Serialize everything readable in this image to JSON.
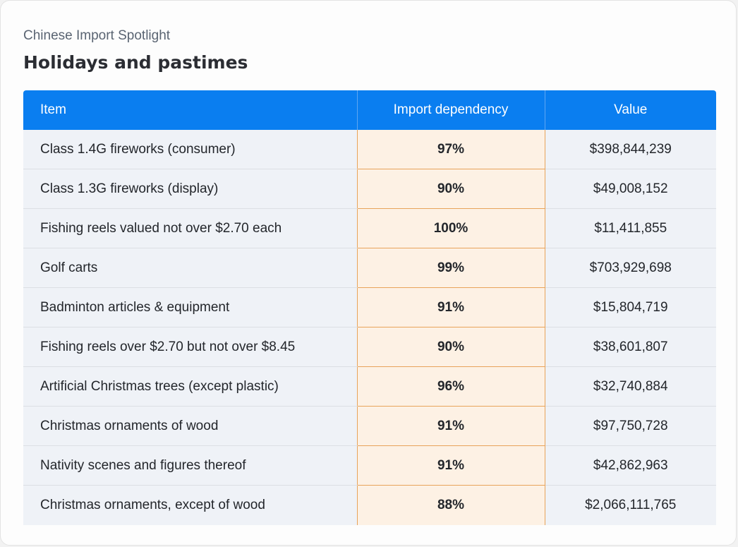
{
  "header": {
    "subtitle": "Chinese Import Spotlight",
    "title": "Holidays and pastimes"
  },
  "colors": {
    "header_bg": "#0a7ef0",
    "highlight_bg": "#fdf1e4",
    "highlight_border": "#e8a35a",
    "row_bg": "#eff2f7"
  },
  "chart_data": {
    "type": "table",
    "title": "Holidays and pastimes",
    "subtitle": "Chinese Import Spotlight",
    "columns": [
      "Item",
      "Import dependency",
      "Value"
    ],
    "rows": [
      [
        "Class 1.4G fireworks (consumer)",
        "97%",
        "$398,844,239"
      ],
      [
        "Class 1.3G fireworks (display)",
        "90%",
        "$49,008,152"
      ],
      [
        "Fishing reels valued not over $2.70 each",
        "100%",
        "$11,411,855"
      ],
      [
        "Golf carts",
        "99%",
        "$703,929,698"
      ],
      [
        "Badminton articles & equipment",
        "91%",
        "$15,804,719"
      ],
      [
        "Fishing reels over $2.70 but not over $8.45",
        "90%",
        "$38,601,807"
      ],
      [
        "Artificial Christmas trees (except plastic)",
        "96%",
        "$32,740,884"
      ],
      [
        "Christmas ornaments of wood",
        "91%",
        "$97,750,728"
      ],
      [
        "Nativity scenes and figures thereof",
        "91%",
        "$42,862,963"
      ],
      [
        "Christmas ornaments, except of wood",
        "88%",
        "$2,066,111,765"
      ]
    ]
  }
}
